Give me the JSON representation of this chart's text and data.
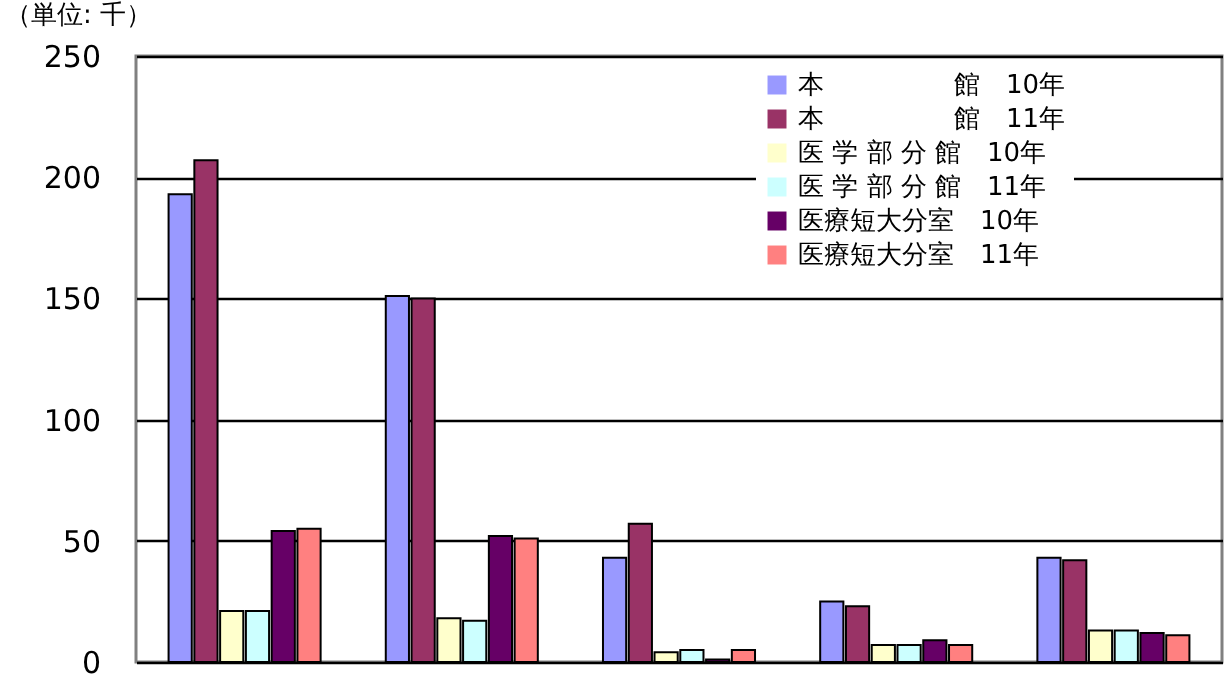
{
  "chart_data": {
    "type": "bar",
    "ylabel": "（単位: 千）",
    "categories": [
      null,
      null,
      null,
      null,
      null
    ],
    "series": [
      {
        "name": "本　　　　　館　10年",
        "color": "#9999ff",
        "values": [
          193,
          151,
          43,
          25,
          43
        ]
      },
      {
        "name": "本　　　　　館　11年",
        "color": "#993366",
        "values": [
          207,
          150,
          57,
          23,
          42
        ]
      },
      {
        "name": "医 学 部 分 館　10年",
        "color": "#ffffcc",
        "values": [
          21,
          18,
          4,
          7,
          13
        ]
      },
      {
        "name": "医 学 部 分 館　11年",
        "color": "#ccffff",
        "values": [
          21,
          17,
          5,
          7,
          13
        ]
      },
      {
        "name": "医療短大分室　10年",
        "color": "#660066",
        "values": [
          54,
          52,
          1,
          9,
          12
        ]
      },
      {
        "name": "医療短大分室　11年",
        "color": "#ff8080",
        "values": [
          55,
          51,
          5,
          7,
          11
        ]
      }
    ],
    "ylim": [
      0,
      250
    ],
    "yticks": [
      0,
      50,
      100,
      150,
      200,
      250
    ],
    "grid": "y",
    "legend": "top right",
    "tick_labels": "y"
  }
}
